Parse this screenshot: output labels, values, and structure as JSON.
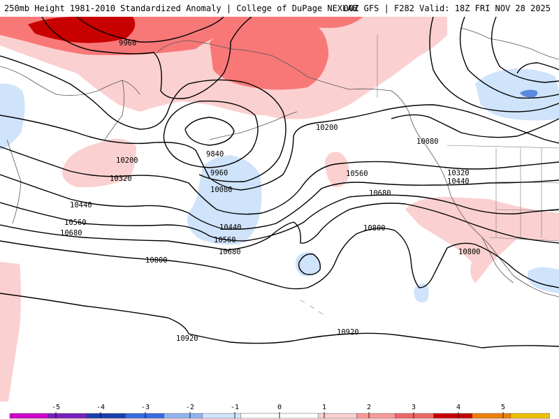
{
  "header": {
    "title_left": "250mb Height 1981-2010 Standardized Anomaly | College of DuPage NEXLAB",
    "title_right": "00Z GFS | F282 Valid: 18Z FRI NOV 28 2025"
  },
  "map": {
    "variable": "250mb geopotential height (contours) and standardized anomaly (shading)",
    "contour_labels": [
      {
        "id": "l9960a",
        "text": "9960"
      },
      {
        "id": "l9840",
        "text": "9840"
      },
      {
        "id": "l9960b",
        "text": "9960"
      },
      {
        "id": "l10080a",
        "text": "10080"
      },
      {
        "id": "l10080b",
        "text": "10080"
      },
      {
        "id": "l10200a",
        "text": "10200"
      },
      {
        "id": "l10200b",
        "text": "10200"
      },
      {
        "id": "l10320a",
        "text": "10320"
      },
      {
        "id": "l10320b",
        "text": "10320"
      },
      {
        "id": "l10440a",
        "text": "10440"
      },
      {
        "id": "l10440b",
        "text": "10440"
      },
      {
        "id": "l10440c",
        "text": "10440"
      },
      {
        "id": "l10560a",
        "text": "10560"
      },
      {
        "id": "l10560b",
        "text": "10560"
      },
      {
        "id": "l10560c",
        "text": "10560"
      },
      {
        "id": "l10680a",
        "text": "10680"
      },
      {
        "id": "l10680b",
        "text": "10680"
      },
      {
        "id": "l10680c",
        "text": "10680"
      },
      {
        "id": "l10800a",
        "text": "10800"
      },
      {
        "id": "l10800b",
        "text": "10800"
      },
      {
        "id": "l10800c",
        "text": "10800"
      },
      {
        "id": "l10920a",
        "text": "10920"
      },
      {
        "id": "l10920b",
        "text": "10920"
      }
    ]
  },
  "colorbar": {
    "ticks": [
      "-5",
      "-4",
      "-3",
      "-2",
      "-1",
      "0",
      "1",
      "2",
      "3",
      "4",
      "5"
    ],
    "colors": [
      "#cc00cc",
      "#7a1fbf",
      "#1a3fb0",
      "#3a6be0",
      "#8fb4f0",
      "#d2e4fb",
      "#ffffff",
      "#ffffff",
      "#fbd0d0",
      "#fa9a9a",
      "#f06666",
      "#c80000",
      "#f08000",
      "#f0c000"
    ]
  },
  "colors": {
    "anomaly_pos_1": "#fbd0d0",
    "anomaly_pos_2": "#f87878",
    "anomaly_pos_3": "#d00000",
    "anomaly_neg_1": "#cfe3fa",
    "anomaly_neg_2": "#5a8ae0"
  }
}
